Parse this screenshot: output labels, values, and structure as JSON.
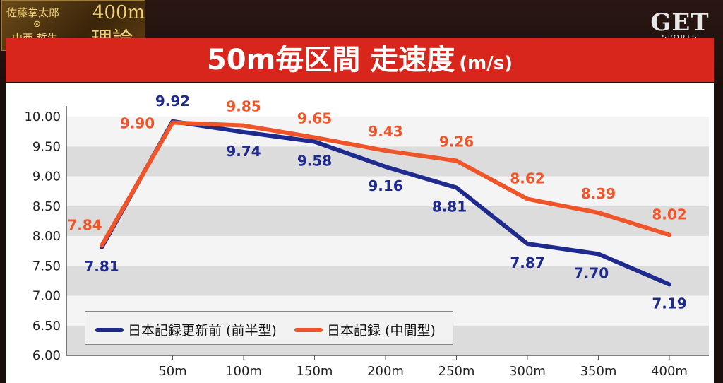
{
  "header": {
    "show_name_1": "佐藤拳太郎",
    "show_cross": "⊗",
    "show_name_2": "中西 哲生",
    "show_title_1": "400m",
    "show_title_2": "理論",
    "brand_main": "GET",
    "brand_sub": "SPORTS"
  },
  "title": {
    "main": "50m毎区間 走速度",
    "unit": "(m/s)"
  },
  "colors": {
    "before_series": "#1f2a8f",
    "record_series": "#f0552a",
    "title_band": "#d9261c"
  },
  "chart_data": {
    "type": "line",
    "title": "50m毎区間 走速度(m/s)",
    "x": [
      "",
      "50m",
      "100m",
      "150m",
      "200m",
      "250m",
      "300m",
      "350m",
      "400m"
    ],
    "ylim": [
      6.0,
      10.0
    ],
    "yticks": [
      "6.00",
      "6.50",
      "7.00",
      "7.50",
      "8.00",
      "8.50",
      "9.00",
      "9.50",
      "10.00"
    ],
    "grid": "horizontal bands",
    "legend": "bottom-left",
    "series": [
      {
        "name": "日本記録更新前 (前半型)",
        "values": [
          7.81,
          9.92,
          9.74,
          9.58,
          9.16,
          8.81,
          7.87,
          7.7,
          7.19
        ],
        "labels": [
          "7.81",
          "9.92",
          "9.74",
          "9.58",
          "9.16",
          "8.81",
          "7.87",
          "7.70",
          "7.19"
        ]
      },
      {
        "name": "日本記録 (中間型)",
        "values": [
          7.84,
          9.9,
          9.85,
          9.65,
          9.43,
          9.26,
          8.62,
          8.39,
          8.02
        ],
        "labels": [
          "7.84",
          "9.90",
          "9.85",
          "9.65",
          "9.43",
          "9.26",
          "8.62",
          "8.39",
          "8.02"
        ]
      }
    ]
  }
}
